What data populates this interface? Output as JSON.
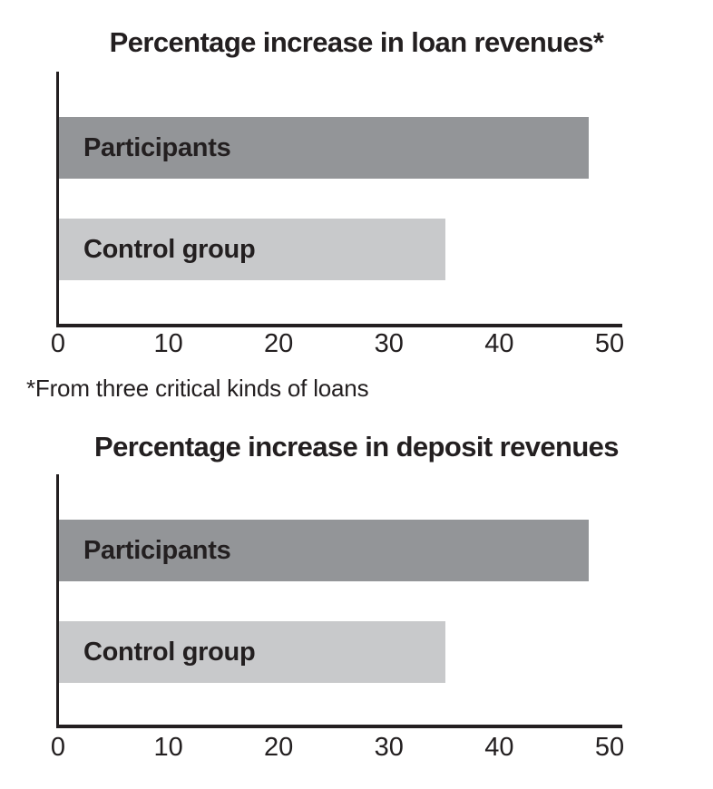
{
  "page": {
    "background": "#ffffff",
    "text_color": "#231f20",
    "axis_color": "#231f20"
  },
  "chart_data": [
    {
      "type": "bar",
      "orientation": "horizontal",
      "title": "Percentage increase in loan revenues*",
      "categories": [
        "Participants",
        "Control group"
      ],
      "values": [
        48,
        35
      ],
      "bar_colors": [
        "#939598",
        "#c8c9cb"
      ],
      "xlim": [
        0,
        50
      ],
      "xticks": [
        0,
        10,
        20,
        30,
        40,
        50
      ],
      "grid": false,
      "legend_position": "labels-inside-bars",
      "footnote": "*From three critical kinds of loans"
    },
    {
      "type": "bar",
      "orientation": "horizontal",
      "title": "Percentage increase in deposit revenues",
      "categories": [
        "Participants",
        "Control group"
      ],
      "values": [
        48,
        35
      ],
      "bar_colors": [
        "#939598",
        "#c8c9cb"
      ],
      "xlim": [
        0,
        50
      ],
      "xticks": [
        0,
        10,
        20,
        30,
        40,
        50
      ],
      "grid": false,
      "legend_position": "labels-inside-bars"
    }
  ]
}
